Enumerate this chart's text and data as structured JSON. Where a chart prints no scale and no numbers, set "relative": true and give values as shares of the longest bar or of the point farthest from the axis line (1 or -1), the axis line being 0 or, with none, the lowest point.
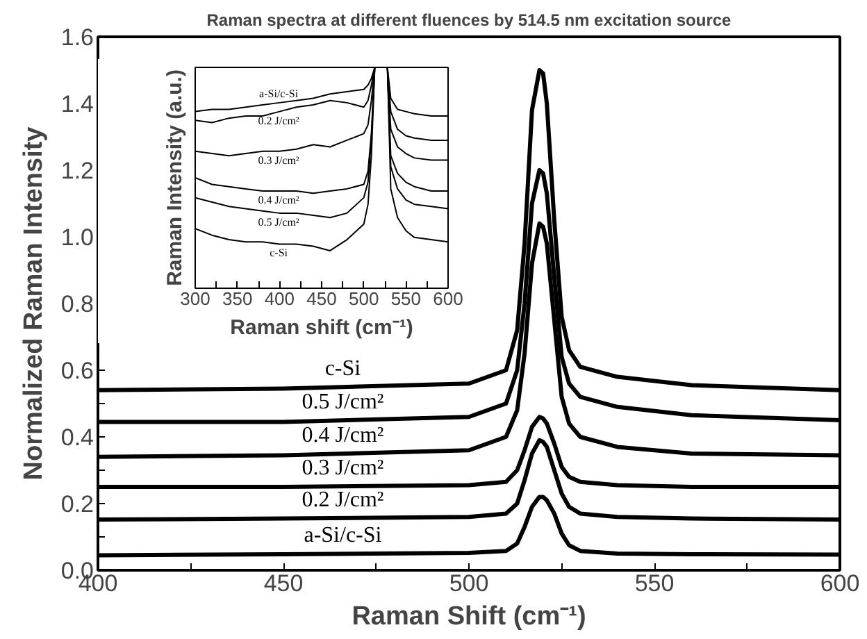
{
  "chart_data": [
    {
      "type": "line",
      "title": "Raman spectra at different fluences by 514.5 nm excitation source",
      "xlabel": "Raman Shift (cm⁻¹)",
      "ylabel": "Normalized Raman Intensity",
      "x": [
        400,
        450,
        500,
        510,
        513,
        515,
        517,
        519,
        520,
        521,
        523,
        525,
        527,
        530,
        540,
        560,
        600
      ],
      "series": [
        {
          "name": "a-Si/c-Si",
          "color": "#000000",
          "values": [
            0.045,
            0.048,
            0.052,
            0.058,
            0.08,
            0.13,
            0.19,
            0.22,
            0.22,
            0.21,
            0.17,
            0.11,
            0.075,
            0.058,
            0.05,
            0.048,
            0.047
          ]
        },
        {
          "name": "0.2 J/cm²",
          "color": "#000000",
          "values": [
            0.152,
            0.155,
            0.16,
            0.17,
            0.2,
            0.27,
            0.35,
            0.39,
            0.385,
            0.37,
            0.3,
            0.23,
            0.19,
            0.17,
            0.16,
            0.155,
            0.152
          ]
        },
        {
          "name": "0.3 J/cm²",
          "color": "#000000",
          "values": [
            0.25,
            0.25,
            0.255,
            0.265,
            0.3,
            0.36,
            0.43,
            0.46,
            0.455,
            0.44,
            0.38,
            0.31,
            0.28,
            0.265,
            0.255,
            0.25,
            0.25
          ]
        },
        {
          "name": "0.4 J/cm²",
          "color": "#000000",
          "values": [
            0.34,
            0.345,
            0.36,
            0.4,
            0.48,
            0.65,
            0.92,
            1.04,
            1.03,
            0.98,
            0.75,
            0.52,
            0.44,
            0.4,
            0.37,
            0.35,
            0.345
          ]
        },
        {
          "name": "0.5 J/cm²",
          "color": "#000000",
          "values": [
            0.445,
            0.445,
            0.46,
            0.5,
            0.6,
            0.8,
            1.1,
            1.2,
            1.19,
            1.13,
            0.88,
            0.64,
            0.56,
            0.52,
            0.49,
            0.465,
            0.45
          ]
        },
        {
          "name": "c-Si",
          "color": "#000000",
          "values": [
            0.54,
            0.545,
            0.56,
            0.6,
            0.72,
            0.98,
            1.38,
            1.5,
            1.49,
            1.4,
            1.05,
            0.76,
            0.66,
            0.61,
            0.58,
            0.555,
            0.54
          ]
        }
      ],
      "xlim": [
        400,
        600
      ],
      "ylim": [
        0,
        1.6
      ],
      "xticks": [
        400,
        {
          "value": 425,
          "label": null
        },
        450,
        {
          "value": 475,
          "label": null
        },
        500,
        {
          "value": 525,
          "label": null
        },
        550,
        {
          "value": 575,
          "label": null
        },
        600
      ],
      "yticks": [
        {
          "value": 0,
          "label": "0.0"
        },
        {
          "value": 0.1,
          "label": null
        },
        0.2,
        {
          "value": 0.3,
          "label": null
        },
        0.4,
        {
          "value": 0.5,
          "label": null
        },
        0.6,
        {
          "value": 0.7,
          "label": null
        },
        0.8,
        {
          "value": 0.9,
          "label": null
        },
        {
          "value": 1,
          "label": "1.0"
        },
        {
          "value": 1.1,
          "label": null
        },
        1.2,
        {
          "value": 1.3,
          "label": null
        },
        1.4,
        {
          "value": 1.5,
          "label": null
        },
        1.6
      ]
    },
    {
      "type": "line",
      "relative": true,
      "xlabel": "Raman shift (cm⁻¹)",
      "ylabel": "Raman Intensity (a.u.)",
      "x": [
        300,
        320,
        340,
        360,
        380,
        400,
        420,
        440,
        460,
        480,
        500,
        505,
        509,
        513,
        520,
        528,
        532,
        540,
        550,
        560,
        580,
        600
      ],
      "series": [
        {
          "name": "a-Si/c-Si",
          "color": "#000000",
          "values": [
            0.8,
            0.81,
            0.81,
            0.82,
            0.83,
            0.84,
            0.85,
            0.86,
            0.88,
            0.89,
            0.9,
            0.92,
            0.95,
            1,
            null,
            1,
            0.86,
            0.81,
            0.8,
            0.79,
            0.78,
            0.78
          ]
        },
        {
          "name": "0.2 J/cm²",
          "color": "#000000",
          "values": [
            0.76,
            0.75,
            0.77,
            0.78,
            0.78,
            0.8,
            0.82,
            0.83,
            0.85,
            0.84,
            0.82,
            0.85,
            0.92,
            1,
            null,
            1,
            0.8,
            0.72,
            0.69,
            0.68,
            0.67,
            0.67
          ]
        },
        {
          "name": "0.3 J/cm²",
          "color": "#000000",
          "values": [
            0.62,
            0.61,
            0.6,
            0.61,
            0.62,
            0.62,
            0.63,
            0.65,
            0.64,
            0.67,
            0.7,
            0.74,
            0.85,
            1,
            null,
            1,
            0.72,
            0.64,
            0.61,
            0.59,
            0.58,
            0.58
          ]
        },
        {
          "name": "0.4 J/cm²",
          "color": "#000000",
          "values": [
            0.5,
            0.47,
            0.46,
            0.45,
            0.44,
            0.44,
            0.44,
            0.43,
            0.44,
            0.45,
            0.47,
            0.53,
            0.7,
            1,
            null,
            1,
            0.6,
            0.52,
            0.48,
            0.46,
            0.44,
            0.44
          ]
        },
        {
          "name": "0.5 J/cm²",
          "color": "#000000",
          "values": [
            0.41,
            0.39,
            0.37,
            0.36,
            0.35,
            0.34,
            0.34,
            0.33,
            0.32,
            0.34,
            0.41,
            0.48,
            0.68,
            1,
            null,
            1,
            0.55,
            0.45,
            0.4,
            0.38,
            0.37,
            0.36
          ]
        },
        {
          "name": "c-Si",
          "color": "#000000",
          "values": [
            0.27,
            0.24,
            0.22,
            0.21,
            0.21,
            0.2,
            0.2,
            0.19,
            0.17,
            0.22,
            0.29,
            0.38,
            0.6,
            1,
            null,
            1,
            0.45,
            0.32,
            0.26,
            0.23,
            0.22,
            0.21
          ]
        }
      ],
      "xlim": [
        300,
        600
      ],
      "xticks": [
        300,
        {
          "value": 325,
          "label": null
        },
        350,
        {
          "value": 375,
          "label": null
        },
        400,
        {
          "value": 425,
          "label": null
        },
        450,
        {
          "value": 475,
          "label": null
        },
        500,
        {
          "value": 525,
          "label": null
        },
        550,
        {
          "value": 575,
          "label": null
        },
        600
      ]
    }
  ]
}
